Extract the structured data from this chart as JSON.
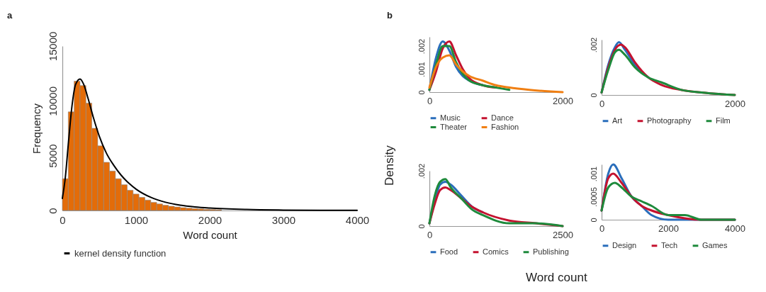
{
  "chart_data": [
    {
      "type": "histogram",
      "xlabel": "Word count",
      "ylabel": "Frequency",
      "annotations": [
        "a"
      ],
      "color": "#e36c09",
      "legend": "bottom",
      "bins": [
        0,
        80,
        160,
        240,
        320,
        400,
        480,
        560,
        640,
        720,
        800,
        880,
        960,
        1040,
        1120,
        1200,
        1280,
        1360,
        1440,
        1520,
        1600,
        1680,
        1760,
        1840,
        1920,
        2000,
        2080,
        2160
      ],
      "values": [
        2900,
        9000,
        11800,
        11400,
        9800,
        7500,
        5900,
        4400,
        3600,
        2900,
        2350,
        1850,
        1500,
        1200,
        950,
        750,
        600,
        480,
        390,
        320,
        260,
        210,
        170,
        140,
        110,
        90,
        70
      ],
      "xlim": [
        0,
        4000
      ],
      "xticks": [
        0,
        1000,
        2000,
        3000,
        4000
      ],
      "ylim": [
        0,
        15000
      ],
      "yticks": [
        0,
        5000,
        10000,
        15000
      ],
      "series": [
        {
          "type": "line",
          "name": "kernel density function",
          "color": "#000000",
          "x": [
            0,
            40,
            80,
            130,
            180,
            240,
            290,
            350,
            420,
            500,
            600,
            700,
            800,
            900,
            1000,
            1200,
            1400,
            1600,
            1800,
            2000,
            2500,
            3000,
            3500,
            4000
          ],
          "values": [
            1100,
            3000,
            6000,
            9500,
            11500,
            12000,
            11500,
            10200,
            8500,
            6800,
            5200,
            4100,
            3200,
            2500,
            1950,
            1200,
            750,
            480,
            320,
            220,
            90,
            40,
            20,
            10
          ]
        }
      ]
    },
    {
      "type": "line",
      "annotations": [
        "b"
      ],
      "legend": "bottom",
      "xlim": [
        0,
        2000
      ],
      "xticks": [
        0,
        2000
      ],
      "ylim": [
        0,
        0.0024
      ],
      "yticks": [
        0,
        {
          "value": 0.001,
          "label": ".001"
        },
        {
          "value": 0.002,
          "label": ".002"
        }
      ],
      "x": [
        0,
        100,
        200,
        300,
        400,
        500,
        600,
        800,
        1000,
        1200,
        1500,
        2000
      ],
      "series": [
        {
          "name": "Music",
          "color": "#2a6ebb",
          "values": [
            0.0001,
            0.0015,
            0.0022,
            0.0018,
            0.0011,
            0.0007,
            0.0005,
            0.0003,
            null,
            null,
            null,
            null
          ]
        },
        {
          "name": "Dance",
          "color": "#c4122f",
          "values": [
            0.0001,
            0.0009,
            0.0019,
            0.0022,
            0.0016,
            0.001,
            0.0006,
            0.0003,
            0.0002,
            null,
            null,
            null
          ]
        },
        {
          "name": "Theater",
          "color": "#1e8a3c",
          "values": [
            0.0001,
            0.0012,
            0.002,
            0.002,
            0.0013,
            0.0008,
            0.0005,
            0.0003,
            0.0002,
            0.0001,
            null,
            null
          ]
        },
        {
          "name": "Fashion",
          "color": "#f07f13",
          "values": [
            0.0002,
            0.0011,
            0.0015,
            0.0016,
            0.0012,
            0.0009,
            0.0007,
            0.0005,
            0.0003,
            0.0002,
            0.0001,
            0
          ]
        }
      ]
    },
    {
      "type": "line",
      "legend": "bottom",
      "xlim": [
        0,
        2000
      ],
      "xticks": [
        0,
        2000
      ],
      "ylim": [
        0,
        0.0022
      ],
      "yticks": [
        0,
        {
          "value": 0.002,
          "label": ".002"
        }
      ],
      "series": [
        {
          "name": "Art",
          "color": "#2a6ebb",
          "x": [
            0,
            100,
            200,
            260,
            350,
            500,
            700
          ],
          "values": [
            0.0001,
            0.0012,
            0.0019,
            0.0021,
            0.0018,
            0.0012,
            0.0007
          ]
        },
        {
          "name": "Photography",
          "color": "#c4122f",
          "x": [
            0,
            100,
            200,
            290,
            350,
            500,
            700,
            900,
            1200,
            1500,
            2000
          ],
          "values": [
            0.0001,
            0.0011,
            0.0018,
            0.002,
            0.0019,
            0.0013,
            0.0007,
            0.0004,
            0.0002,
            0.0001,
            0
          ]
        },
        {
          "name": "Film",
          "color": "#1e8a3c",
          "x": [
            0,
            100,
            200,
            260,
            350,
            500,
            700,
            900,
            1200,
            1500,
            2000
          ],
          "values": [
            0.0001,
            0.001,
            0.0017,
            0.0018,
            0.0016,
            0.0011,
            0.0007,
            0.0005,
            0.0002,
            0.0001,
            0
          ]
        }
      ]
    },
    {
      "type": "line",
      "legend": "bottom",
      "xlabel": "Word count",
      "ylabel": "Density",
      "xlim": [
        0,
        2500
      ],
      "xticks": [
        0,
        2500
      ],
      "ylim": [
        0,
        0.002
      ],
      "yticks": [
        0,
        {
          "value": 0.002,
          "label": ".002"
        }
      ],
      "x": [
        0,
        100,
        200,
        300,
        400,
        600,
        800,
        1000,
        1500,
        2000,
        2500
      ],
      "series": [
        {
          "name": "Food",
          "color": "#2a6ebb",
          "values": [
            0.0001,
            0.0009,
            0.0015,
            0.0016,
            0.0015,
            0.0011,
            0.0007,
            0.0005,
            null,
            null,
            null
          ]
        },
        {
          "name": "Comics",
          "color": "#c4122f",
          "values": [
            0.0001,
            0.0008,
            0.0013,
            0.0014,
            0.0013,
            0.001,
            0.0007,
            0.0005,
            0.0002,
            0.0001,
            0
          ]
        },
        {
          "name": "Publishing",
          "color": "#1e8a3c",
          "values": [
            0.0001,
            0.0011,
            0.0016,
            0.0017,
            0.0014,
            0.001,
            0.0006,
            0.0004,
            0.0001,
            0.0001,
            0
          ]
        }
      ]
    },
    {
      "type": "line",
      "legend": "bottom",
      "xlim": [
        0,
        4000
      ],
      "xticks": [
        0,
        2000,
        4000
      ],
      "ylim": [
        0,
        0.0012
      ],
      "yticks": [
        0,
        {
          "value": 0.0005,
          "label": ".0005"
        },
        {
          "value": 0.001,
          "label": ".001"
        }
      ],
      "series": [
        {
          "name": "Design",
          "color": "#2a6ebb",
          "x": [
            0,
            200,
            350,
            600,
            900,
            1200,
            1500,
            2000,
            3000,
            4000
          ],
          "values": [
            0.0002,
            0.001,
            0.0012,
            0.0009,
            0.0005,
            0.0003,
            0.0001,
            0,
            0,
            0
          ]
        },
        {
          "name": "Tech",
          "color": "#c4122f",
          "x": [
            0,
            200,
            350,
            600,
            900,
            1200,
            1500,
            2000,
            3000,
            4000
          ],
          "values": [
            0.0002,
            0.0009,
            0.001,
            0.0008,
            0.0005,
            0.0003,
            0.0002,
            0.0001,
            0,
            0
          ]
        },
        {
          "name": "Games",
          "color": "#1e8a3c",
          "x": [
            0,
            200,
            400,
            600,
            900,
            1200,
            1500,
            2000,
            2500,
            3000,
            4000
          ],
          "values": [
            0.0002,
            0.0007,
            0.0008,
            0.0007,
            0.0005,
            0.0004,
            0.0003,
            0.0001,
            0.0001,
            0,
            0
          ]
        }
      ]
    }
  ]
}
